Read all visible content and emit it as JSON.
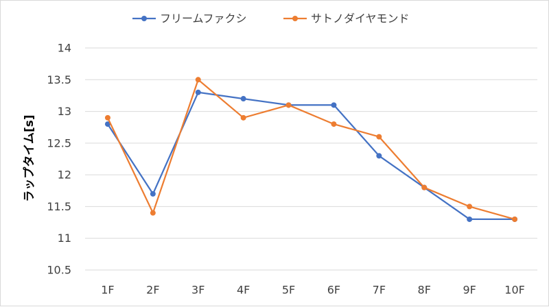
{
  "chart_data": {
    "type": "line",
    "title": "",
    "xlabel": "",
    "ylabel": "ラップタイム[s]",
    "categories": [
      "1F",
      "2F",
      "3F",
      "4F",
      "5F",
      "6F",
      "7F",
      "8F",
      "9F",
      "10F"
    ],
    "ylim": [
      10.5,
      14
    ],
    "yticks": [
      10.5,
      11,
      11.5,
      12,
      12.5,
      13,
      13.5,
      14
    ],
    "ytick_labels": [
      "10.5",
      "11",
      "11.5",
      "12",
      "12.5",
      "13",
      "13.5",
      "14"
    ],
    "grid": "horizontal",
    "legend_position": "top",
    "series": [
      {
        "name": "フリームファクシ",
        "color": "#4472c4",
        "values": [
          12.8,
          11.7,
          13.3,
          13.2,
          13.1,
          13.1,
          12.3,
          11.8,
          11.3,
          11.3
        ]
      },
      {
        "name": "サトノダイヤモンド",
        "color": "#ed7d31",
        "values": [
          12.9,
          11.4,
          13.5,
          12.9,
          13.1,
          12.8,
          12.6,
          11.8,
          11.5,
          11.3
        ]
      }
    ]
  }
}
